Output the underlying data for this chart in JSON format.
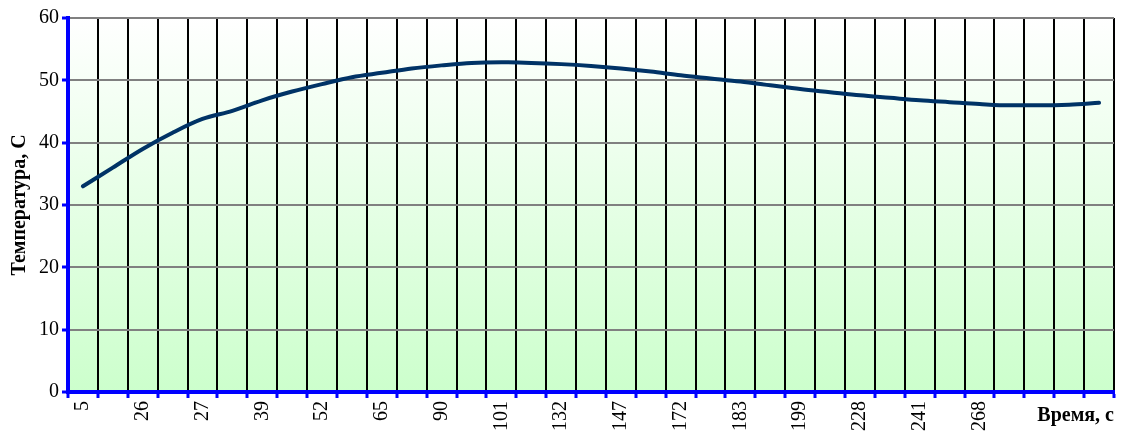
{
  "chart_data": {
    "type": "line",
    "xlabel": "Время, с",
    "ylabel": "Температура, С",
    "categories": [
      "5",
      null,
      "26",
      null,
      "27",
      null,
      "39",
      null,
      "52",
      null,
      "65",
      null,
      "90",
      null,
      "101",
      null,
      "132",
      null,
      "147",
      null,
      "172",
      null,
      "183",
      null,
      "199",
      null,
      "228",
      null,
      "241",
      null,
      "268",
      null,
      null,
      null,
      null
    ],
    "series": [
      {
        "color": "#003366",
        "values": [
          33,
          36,
          39,
          41.6,
          43.8,
          45.1,
          46.8,
          48.2,
          49.4,
          50.5,
          51.2,
          51.9,
          52.4,
          52.8,
          52.9,
          52.8,
          52.6,
          52.3,
          51.9,
          51.4,
          50.8,
          50.3,
          49.8,
          49.2,
          48.6,
          48.1,
          47.6,
          47.2,
          46.8,
          46.5,
          46.2,
          46.0,
          46.0,
          46.1,
          46.4
        ]
      }
    ],
    "ylim": [
      0,
      60
    ],
    "yticks": [
      0,
      10,
      20,
      30,
      40,
      50,
      60
    ],
    "grid": true,
    "legend": false,
    "marker": "none",
    "line_style": "solid"
  }
}
